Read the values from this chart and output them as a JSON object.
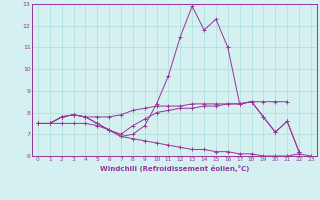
{
  "xlabel": "Windchill (Refroidissement éolien,°C)",
  "x": [
    0,
    1,
    2,
    3,
    4,
    5,
    6,
    7,
    8,
    9,
    10,
    11,
    12,
    13,
    14,
    15,
    16,
    17,
    18,
    19,
    20,
    21,
    22,
    23
  ],
  "line1": [
    7.5,
    7.5,
    7.8,
    7.9,
    7.8,
    7.5,
    7.2,
    6.9,
    7.0,
    7.4,
    8.4,
    9.7,
    11.5,
    12.9,
    11.8,
    12.3,
    11.0,
    8.4,
    8.5,
    7.8,
    7.1,
    7.6,
    6.2,
    null
  ],
  "line2": [
    7.5,
    7.5,
    7.8,
    7.9,
    7.8,
    7.8,
    7.8,
    7.9,
    8.1,
    8.2,
    8.3,
    8.3,
    8.3,
    8.4,
    8.4,
    8.4,
    8.4,
    8.4,
    8.5,
    8.5,
    8.5,
    8.5,
    null,
    null
  ],
  "line3": [
    7.5,
    7.5,
    7.8,
    7.9,
    7.8,
    7.5,
    7.2,
    7.0,
    7.4,
    7.7,
    8.0,
    8.1,
    8.2,
    8.2,
    8.3,
    8.3,
    8.4,
    8.4,
    8.5,
    7.8,
    7.1,
    7.6,
    6.2,
    null
  ],
  "line4": [
    7.5,
    7.5,
    7.5,
    7.5,
    7.5,
    7.4,
    7.2,
    6.9,
    6.8,
    6.7,
    6.6,
    6.5,
    6.4,
    6.3,
    6.3,
    6.2,
    6.2,
    6.1,
    6.1,
    6.0,
    6.0,
    6.0,
    6.1,
    6.0
  ],
  "line_color": "#993399",
  "bg_color": "#d4f0f0",
  "grid_color": "#aadddd",
  "xlim": [
    -0.5,
    23.5
  ],
  "ylim": [
    6,
    13
  ],
  "yticks": [
    6,
    7,
    8,
    9,
    10,
    11,
    12,
    13
  ],
  "xticks": [
    0,
    1,
    2,
    3,
    4,
    5,
    6,
    7,
    8,
    9,
    10,
    11,
    12,
    13,
    14,
    15,
    16,
    17,
    18,
    19,
    20,
    21,
    22,
    23
  ]
}
